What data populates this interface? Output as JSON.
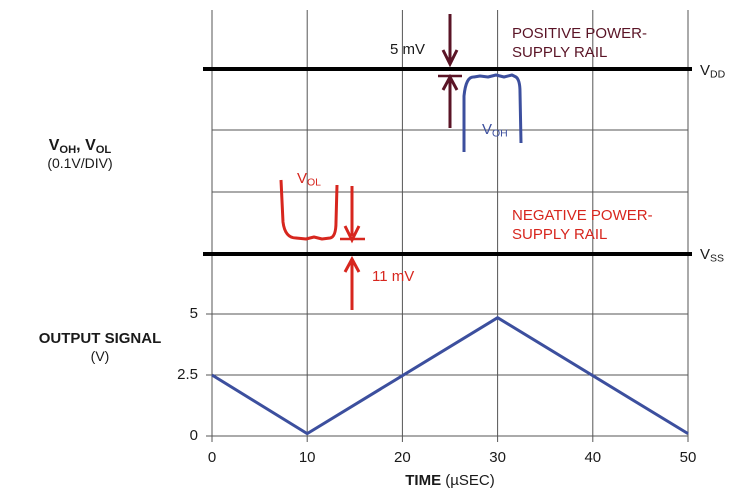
{
  "colors": {
    "grid": "#555555",
    "rail": "#000000",
    "trace": "#3c4f9e",
    "red": "#d7261e",
    "maroon": "#5a1426",
    "text": "#1a1a1a"
  },
  "labels": {
    "upper_y_main": "V",
    "upper_y_sub1": "OH",
    "upper_y_sep": ", V",
    "upper_y_sub2": "OL",
    "upper_y_scale": "(0.1V/DIV)",
    "lower_y_title": "OUTPUT SIGNAL",
    "lower_y_unit": "(V)",
    "x_title": "TIME",
    "x_unit": " (µSEC)",
    "pos_rail_line1": "POSITIVE POWER-",
    "pos_rail_line2": "SUPPLY RAIL",
    "neg_rail_line1": "NEGATIVE POWER-",
    "neg_rail_line2": "SUPPLY RAIL",
    "vdd_main": "V",
    "vdd_sub": "DD",
    "vss_main": "V",
    "vss_sub": "SS",
    "voh_main": "V",
    "voh_sub": "OH",
    "vol_main": "V",
    "vol_sub": "OL",
    "mv5": "5 mV",
    "mv11": "11 mV"
  },
  "chart_data": {
    "type": "line",
    "x_ticks": [
      "0",
      "10",
      "20",
      "30",
      "40",
      "50"
    ],
    "y_ticks": [
      "0",
      "2.5",
      "5"
    ],
    "xlim": [
      0,
      50
    ],
    "ylim": [
      0,
      5
    ],
    "grid": true,
    "series": [
      {
        "x": [
          0,
          10,
          30,
          50
        ],
        "y": [
          2.5,
          0.1,
          4.85,
          0.1
        ]
      }
    ],
    "annotations": {
      "voh_offset": "5 mV",
      "vol_offset": "11 mV"
    }
  }
}
